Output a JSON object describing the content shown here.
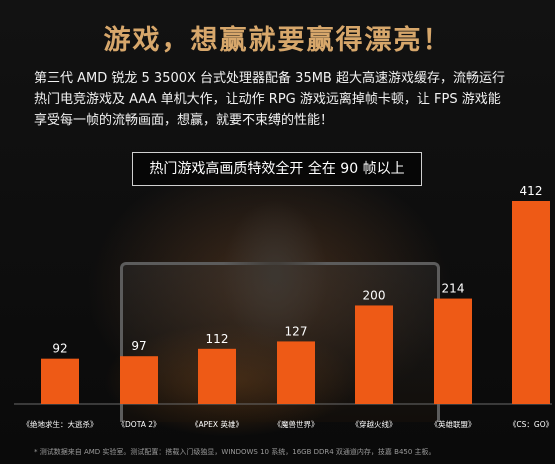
{
  "headline": "游戏，想赢就要赢得漂亮！",
  "description": "第三代 AMD 锐龙 5 3500X 台式处理器配备 35MB 超大高速游戏缓存，流畅运行\n热门电竞游戏及 AAA 单机大作，让动作 RPG 游戏远离掉帧卡顿，让 FPS 游戏能\n享受每一帧的流畅画面，想赢，就要不束缚的性能！",
  "banner": "热门游戏高画质特效全开 全在 90 帧以上",
  "footnote": "* 测试数据来自 AMD 实验室。测试配置：搭载入门级独显，WINDOWS 10 系统，16GB DDR4 双通道内存，技嘉 B450 主板。",
  "colors": {
    "bar": "#ee5a16",
    "headline": "#d7a76b"
  },
  "chart_data": {
    "type": "bar",
    "categories": [
      "《绝地求生：大逃杀》",
      "《DOTA 2》",
      "《APEX 英雄》",
      "《魔兽世界》",
      "《穿越火线》",
      "《英雄联盟》",
      "《CS：GO》"
    ],
    "values": [
      92,
      97,
      112,
      127,
      200,
      214,
      412
    ],
    "ylim": [
      0,
      412
    ]
  }
}
